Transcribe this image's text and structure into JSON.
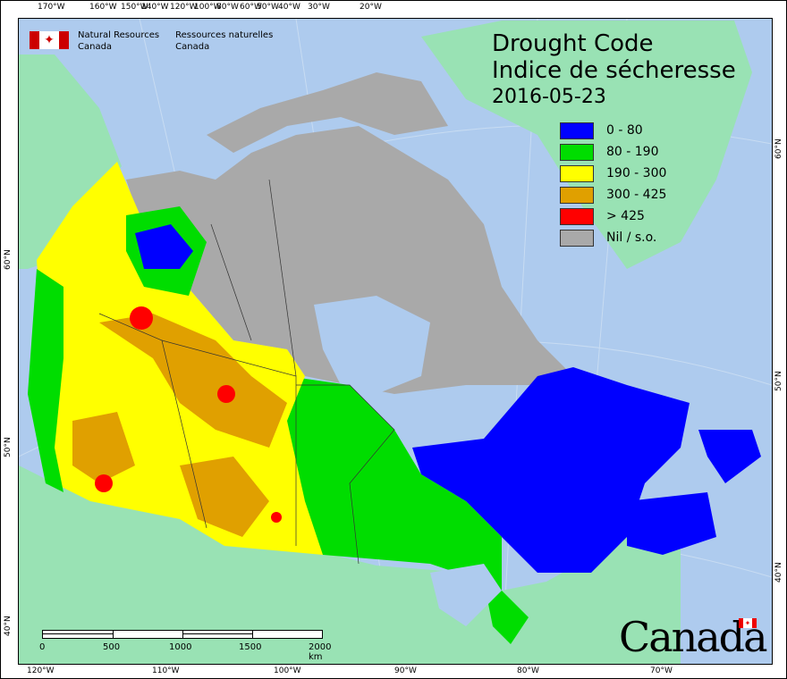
{
  "header": {
    "org_en": "Natural Resources",
    "org_en2": "Canada",
    "org_fr": "Ressources naturelles",
    "org_fr2": "Canada"
  },
  "title": {
    "line1": "Drought Code",
    "line2": "Indice de sécheresse",
    "date": "2016-05-23"
  },
  "legend": [
    {
      "label": "0 - 80",
      "color": "#0000ff"
    },
    {
      "label": "80 - 190",
      "color": "#00dd00"
    },
    {
      "label": "190 - 300",
      "color": "#ffff00"
    },
    {
      "label": "300 - 425",
      "color": "#e0a000"
    },
    {
      "label": "> 425",
      "color": "#ff0000"
    },
    {
      "label": "Nil / s.o.",
      "color": "#a9a9a9"
    }
  ],
  "top_ticks": [
    "170°W",
    "160°W",
    "150°W",
    "140°W",
    "120°W",
    "100°W",
    "80°W",
    "60°W",
    "50°W",
    "40°W",
    "30°W",
    "20°W"
  ],
  "bottom_ticks": [
    "120°W",
    "110°W",
    "100°W",
    "90°W",
    "80°W",
    "70°W"
  ],
  "left_ticks": [
    "60°N",
    "50°N",
    "40°N"
  ],
  "right_ticks": [
    "60°N",
    "50°N",
    "40°N"
  ],
  "scale": {
    "labels": [
      "0",
      "500",
      "1000",
      "1500",
      "2000 km"
    ]
  },
  "wordmark": "Canada",
  "colors": {
    "ocean": "#aecbee",
    "foreign_land": "#99e2b4"
  }
}
